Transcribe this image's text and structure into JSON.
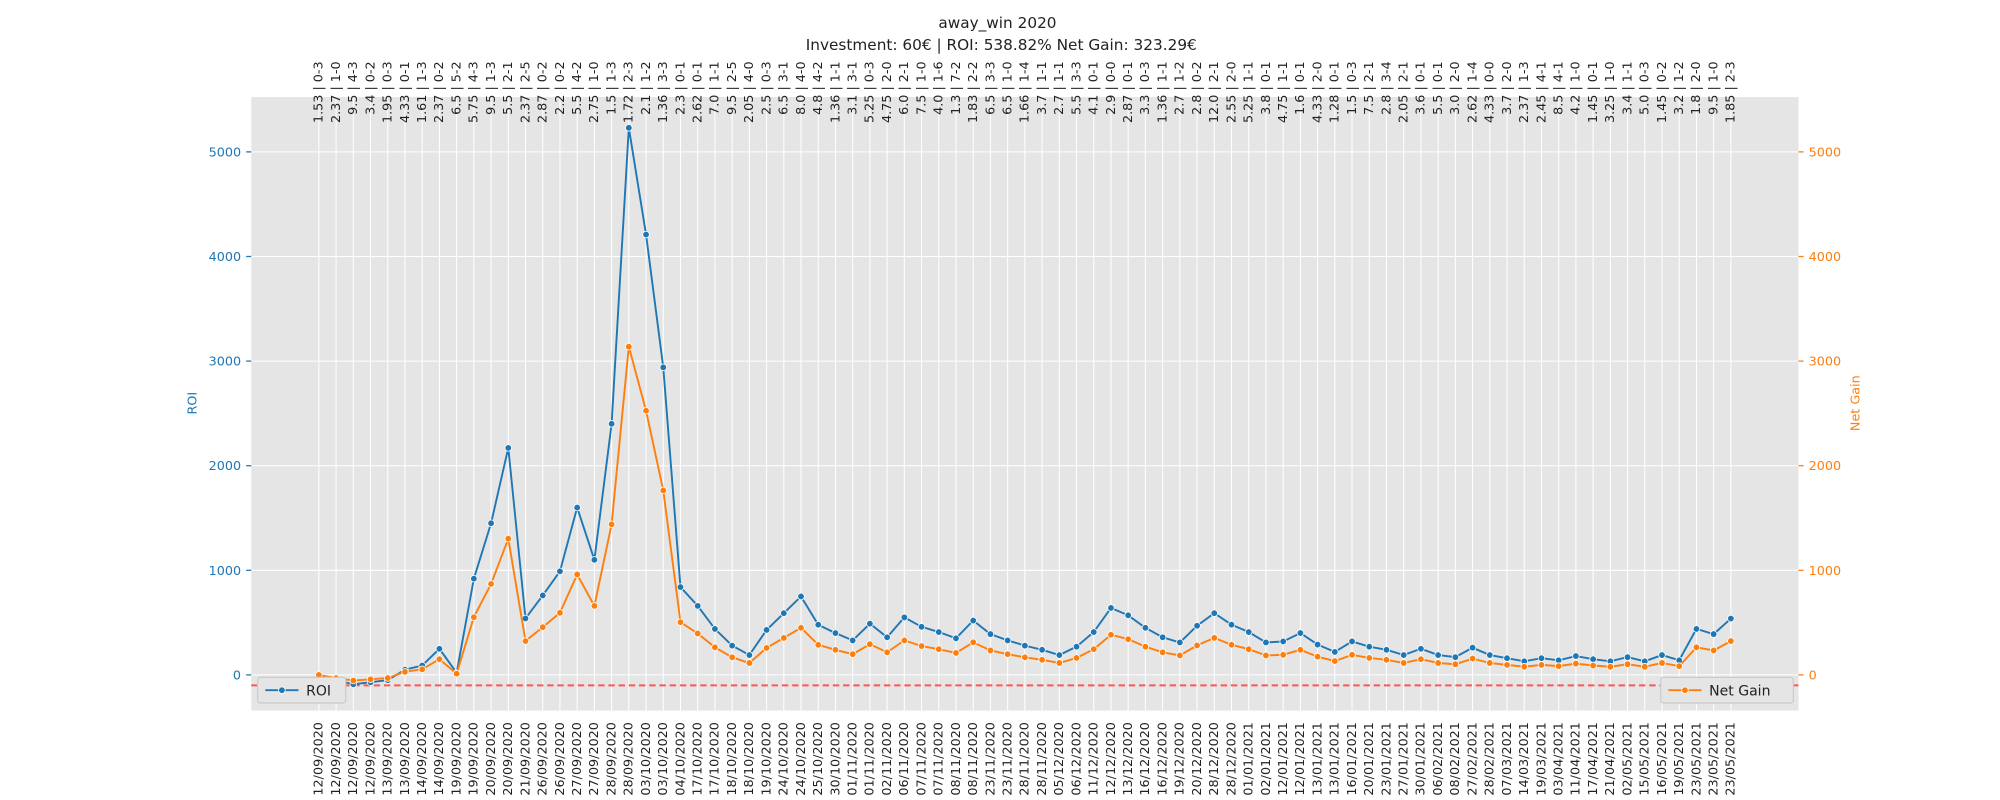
{
  "chart_data": {
    "type": "line",
    "title": "away_win 2020",
    "subtitle": "Investment: 60€ | ROI: 538.82% Net Gain: 323.29€",
    "ylabel": "ROI",
    "y2label": "Net Gain",
    "categories": [
      "12/09/2020",
      "12/09/2020",
      "12/09/2020",
      "12/09/2020",
      "13/09/2020",
      "13/09/2020",
      "14/09/2020",
      "14/09/2020",
      "19/09/2020",
      "19/09/2020",
      "20/09/2020",
      "20/09/2020",
      "21/09/2020",
      "26/09/2020",
      "26/09/2020",
      "27/09/2020",
      "27/09/2020",
      "28/09/2020",
      "28/09/2020",
      "03/10/2020",
      "03/10/2020",
      "04/10/2020",
      "17/10/2020",
      "17/10/2020",
      "18/10/2020",
      "18/10/2020",
      "19/10/2020",
      "24/10/2020",
      "24/10/2020",
      "25/10/2020",
      "30/10/2020",
      "01/11/2020",
      "01/11/2020",
      "02/11/2020",
      "06/11/2020",
      "07/11/2020",
      "07/11/2020",
      "08/11/2020",
      "08/11/2020",
      "23/11/2020",
      "23/11/2020",
      "28/11/2020",
      "28/11/2020",
      "05/12/2020",
      "06/12/2020",
      "11/12/2020",
      "12/12/2020",
      "13/12/2020",
      "16/12/2020",
      "16/12/2020",
      "19/12/2020",
      "20/12/2020",
      "28/12/2020",
      "28/12/2020",
      "01/01/2021",
      "02/01/2021",
      "12/01/2021",
      "12/01/2021",
      "13/01/2021",
      "13/01/2021",
      "16/01/2021",
      "20/01/2021",
      "23/01/2021",
      "27/01/2021",
      "30/01/2021",
      "06/02/2021",
      "08/02/2021",
      "27/02/2021",
      "28/02/2021",
      "07/03/2021",
      "14/03/2021",
      "19/03/2021",
      "03/04/2021",
      "11/04/2021",
      "17/04/2021",
      "21/04/2021",
      "02/05/2021",
      "15/05/2021",
      "16/05/2021",
      "19/05/2021",
      "23/05/2021",
      "23/05/2021",
      "23/05/2021"
    ],
    "top_labels": [
      "1.53 | 0-3",
      "2.37 | 1-0",
      "9.5 | 4-3",
      "3.4 | 0-2",
      "1.95 | 0-3",
      "4.33 | 0-1",
      "1.61 | 1-3",
      "2.37 | 0-2",
      "6.5 | 5-2",
      "5.75 | 4-3",
      "9.5 | 1-3",
      "5.5 | 2-1",
      "2.37 | 2-5",
      "2.87 | 0-2",
      "2.2 | 0-2",
      "5.5 | 4-2",
      "2.75 | 1-0",
      "1.5 | 1-3",
      "1.72 | 2-3",
      "2.1 | 1-2",
      "1.36 | 3-3",
      "2.3 | 0-1",
      "2.62 | 0-1",
      "7.0 | 1-1",
      "9.5 | 2-5",
      "2.05 | 4-0",
      "2.5 | 0-3",
      "6.5 | 3-1",
      "8.0 | 4-0",
      "4.8 | 4-2",
      "1.36 | 1-1",
      "3.1 | 3-1",
      "5.25 | 0-3",
      "4.75 | 2-0",
      "6.0 | 2-1",
      "7.5 | 1-0",
      "4.0 | 1-6",
      "1.3 | 7-2",
      "1.83 | 2-2",
      "6.5 | 3-3",
      "6.5 | 1-0",
      "1.66 | 1-4",
      "3.7 | 1-1",
      "2.7 | 1-1",
      "5.5 | 3-3",
      "4.1 | 0-1",
      "2.9 | 0-0",
      "2.87 | 0-1",
      "3.3 | 0-3",
      "1.36 | 1-1",
      "2.7 | 1-2",
      "2.8 | 0-2",
      "12.0 | 2-1",
      "2.55 | 2-0",
      "5.25 | 1-1",
      "3.8 | 0-1",
      "4.75 | 1-1",
      "1.6 | 0-1",
      "4.33 | 2-0",
      "1.28 | 0-1",
      "1.5 | 0-3",
      "7.5 | 2-1",
      "2.8 | 3-4",
      "2.05 | 2-1",
      "3.6 | 0-1",
      "5.5 | 0-1",
      "3.0 | 2-0",
      "2.62 | 1-4",
      "4.33 | 0-0",
      "3.7 | 2-0",
      "2.37 | 1-3",
      "2.45 | 4-1",
      "8.5 | 4-1",
      "4.2 | 1-0",
      "1.45 | 0-1",
      "3.25 | 1-0",
      "3.4 | 1-1",
      "5.0 | 0-3",
      "1.45 | 0-2",
      "3.2 | 1-2",
      "1.8 | 2-0",
      "9.5 | 1-0",
      "1.85 | 2-3"
    ],
    "series": [
      {
        "name": "ROI",
        "color": "#1f77b4",
        "axis": "y",
        "legend": "lower left",
        "values": [
          0,
          -50,
          -90,
          -70,
          -50,
          50,
          90,
          250,
          20,
          920,
          1450,
          2170,
          540,
          760,
          990,
          1600,
          1100,
          2400,
          5230,
          4210,
          2940,
          840,
          660,
          440,
          280,
          190,
          430,
          590,
          750,
          480,
          400,
          330,
          490,
          360,
          550,
          460,
          410,
          350,
          520,
          390,
          330,
          280,
          240,
          190,
          270,
          410,
          640,
          570,
          450,
          360,
          310,
          470,
          590,
          480,
          410,
          310,
          320,
          400,
          290,
          220,
          320,
          270,
          240,
          190,
          250,
          190,
          170,
          260,
          190,
          160,
          130,
          160,
          140,
          180,
          150,
          130,
          170,
          130,
          190,
          140,
          440,
          390,
          538.82
        ]
      },
      {
        "name": "Net Gain",
        "color": "#ff7f0e",
        "axis": "y2",
        "legend": "lower right",
        "values": [
          0,
          -30,
          -54,
          -42,
          -30,
          30,
          54,
          150,
          12,
          552,
          870,
          1302,
          324,
          456,
          594,
          960,
          660,
          1440,
          3138,
          2526,
          1764,
          504,
          396,
          264,
          168,
          114,
          258,
          354,
          450,
          288,
          240,
          198,
          294,
          216,
          330,
          276,
          246,
          210,
          312,
          234,
          198,
          168,
          144,
          114,
          162,
          246,
          384,
          342,
          270,
          216,
          186,
          282,
          354,
          288,
          246,
          186,
          192,
          240,
          174,
          132,
          192,
          162,
          144,
          114,
          150,
          114,
          102,
          156,
          114,
          96,
          78,
          96,
          84,
          108,
          90,
          78,
          102,
          78,
          114,
          84,
          264,
          234,
          323.29
        ]
      }
    ],
    "ylim": [
      -341,
      5524
    ],
    "yticks": [
      0,
      1000,
      2000,
      3000,
      4000,
      5000
    ],
    "y2lim": [
      -341,
      5524
    ],
    "y2ticks": [
      0,
      1000,
      2000,
      3000,
      4000,
      5000
    ],
    "hline": {
      "value": -100,
      "color": "#ff5555"
    },
    "grid": true
  }
}
